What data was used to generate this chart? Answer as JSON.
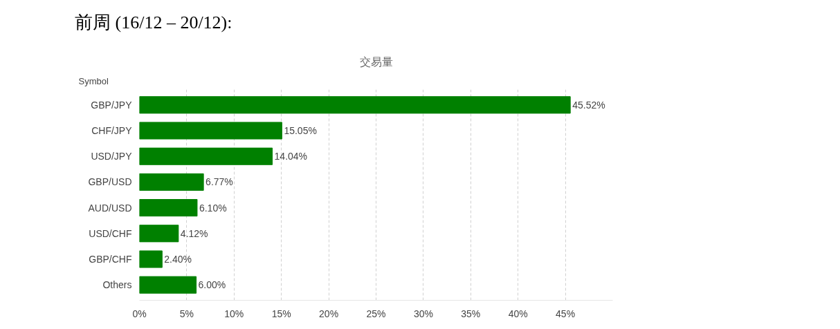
{
  "chart_data": {
    "type": "bar",
    "orientation": "horizontal",
    "title": "交易量",
    "ylabel": "Symbol",
    "annotations": [
      "前周 (16/12 – 20/12):"
    ],
    "categories": [
      "GBP/JPY",
      "CHF/JPY",
      "USD/JPY",
      "GBP/USD",
      "AUD/USD",
      "USD/CHF",
      "GBP/CHF",
      "Others"
    ],
    "values": [
      45.52,
      15.05,
      14.04,
      6.77,
      6.1,
      4.12,
      2.4,
      6.0
    ],
    "value_labels": [
      "45.52%",
      "15.05%",
      "14.04%",
      "6.77%",
      "6.10%",
      "4.12%",
      "2.40%",
      "6.00%"
    ],
    "color": "#008000",
    "xlim": [
      0,
      50
    ],
    "xticks": [
      {
        "value": 0,
        "label": "0%"
      },
      {
        "value": 5,
        "label": "5%"
      },
      {
        "value": 10,
        "label": "10%"
      },
      {
        "value": 15,
        "label": "15%"
      },
      {
        "value": 20,
        "label": "20%"
      },
      {
        "value": 25,
        "label": "25%"
      },
      {
        "value": 30,
        "label": "30%"
      },
      {
        "value": 35,
        "label": "35%"
      },
      {
        "value": 40,
        "label": "40%"
      },
      {
        "value": 45,
        "label": "45%"
      }
    ],
    "grid": "x"
  }
}
